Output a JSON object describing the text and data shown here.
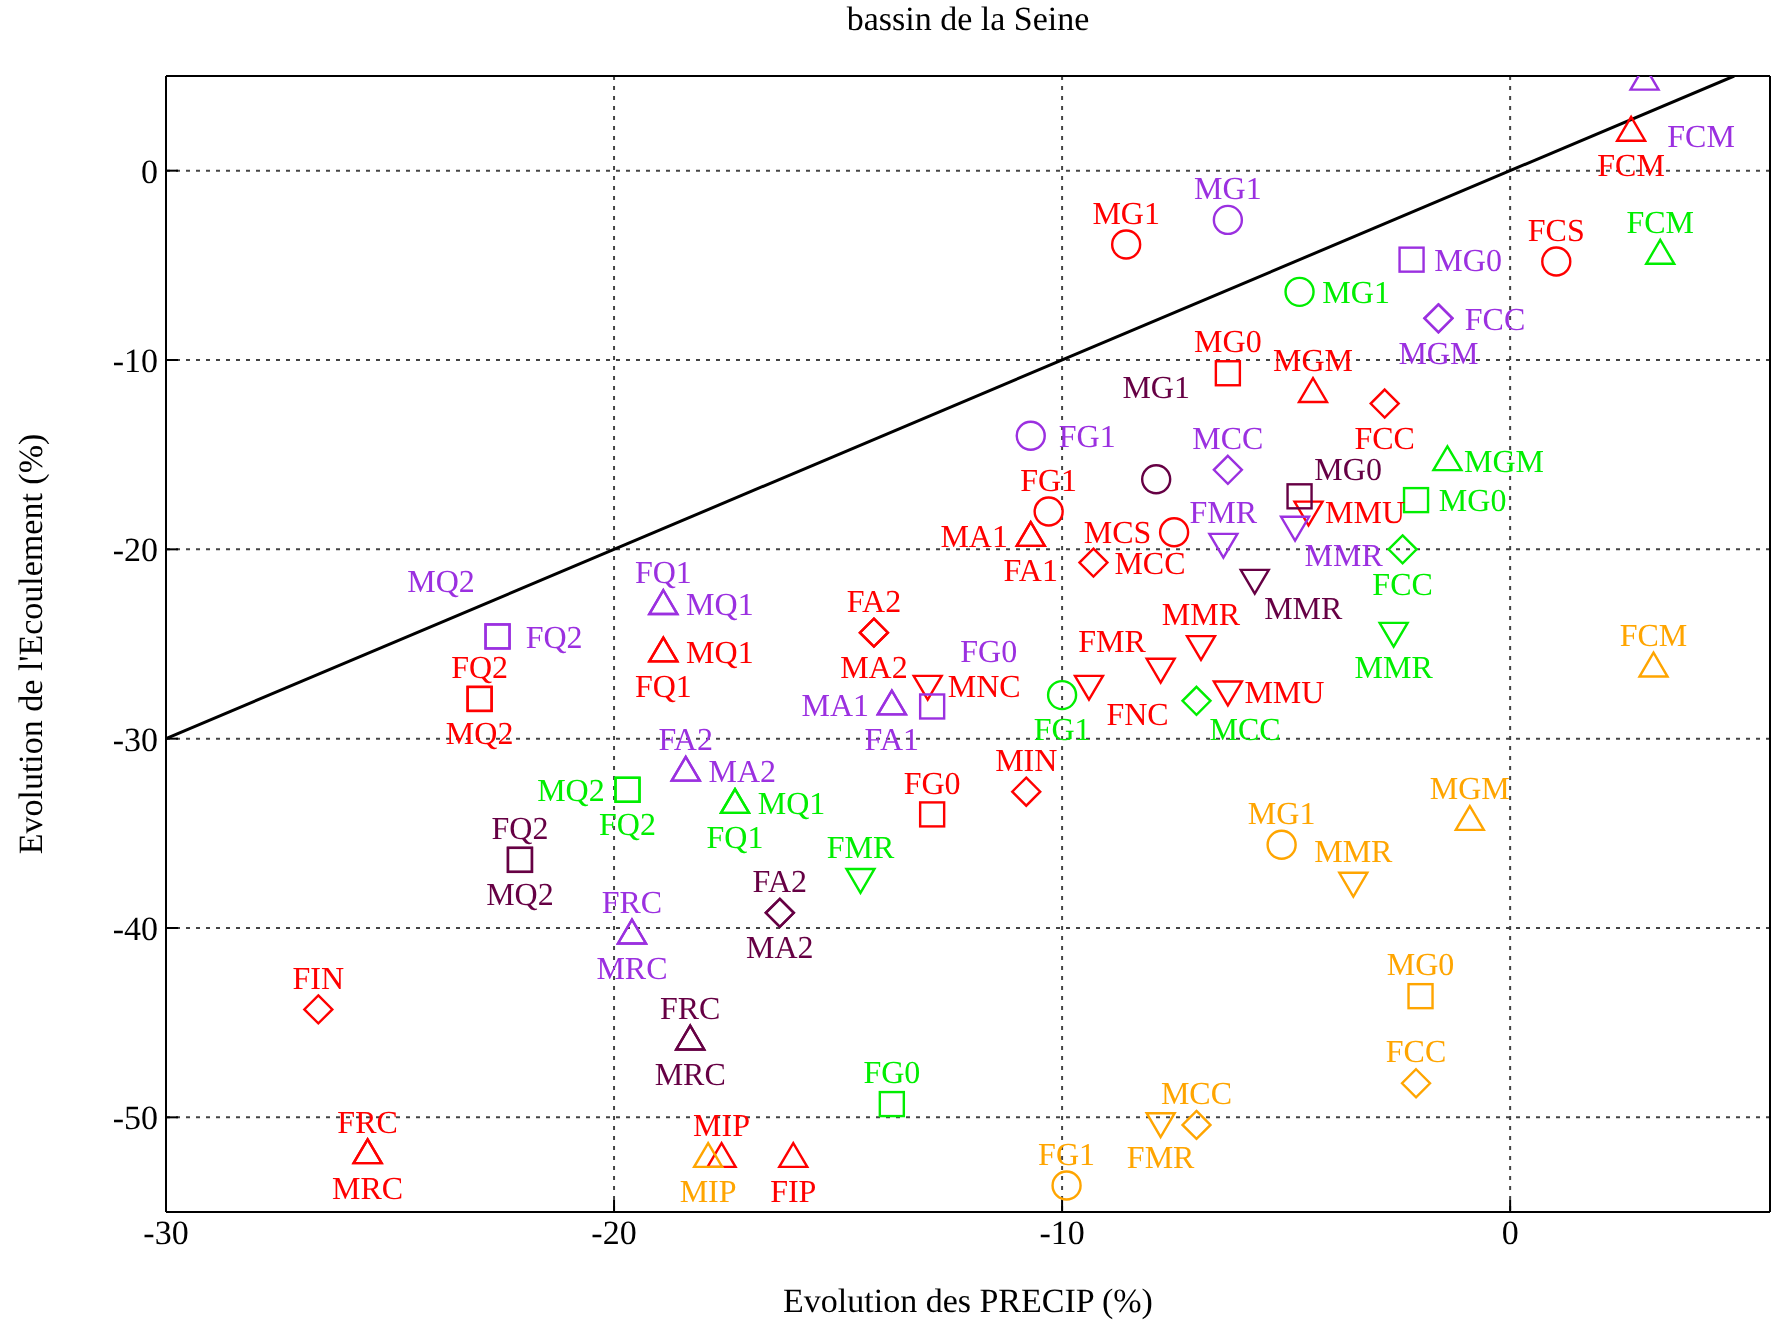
{
  "chart_data": {
    "type": "scatter",
    "title": "bassin de la Seine",
    "xlabel": "Evolution des PRECIP (%)",
    "ylabel": "Evolution de l'Ecoulement (%)",
    "xlim": [
      -30,
      5.8
    ],
    "xticks": [
      -30,
      -20,
      -10,
      0
    ],
    "ylim": [
      -55,
      5
    ],
    "yticks": [
      -50,
      -40,
      -30,
      -20,
      -10,
      0
    ],
    "grid": true,
    "legend": false,
    "series": [
      {
        "type": "line",
        "marker": "none",
        "color": "#000000",
        "x": [
          -30,
          5
        ],
        "values": [
          -30,
          5
        ]
      },
      {
        "marker": "circle",
        "color": "#ff0000",
        "x": [
          -8.57,
          1.03,
          -10.3,
          -7.5
        ],
        "values": [
          -3.9,
          -4.8,
          -18.0,
          -19.1
        ],
        "value_labels": [
          "MG1",
          "FCS",
          "FG1",
          "MCS"
        ]
      },
      {
        "marker": "triangle",
        "color": "#ff0000",
        "x": [
          2.7,
          -4.4,
          -10.7,
          -10.7,
          -18.9,
          -18.9,
          -25.5,
          -25.5,
          -17.6,
          -16.0
        ],
        "values": [
          2.1,
          -11.7,
          -19.3,
          -19.3,
          -25.4,
          -25.4,
          -51.9,
          -51.9,
          -52.1,
          -52.1
        ],
        "value_labels": [
          "FCM",
          "MGM",
          "FA1",
          "MA1",
          "FQ1",
          "MQ1",
          "FRC",
          "MRC",
          "MIP",
          "FIP"
        ]
      },
      {
        "marker": "square",
        "color": "#ff0000",
        "x": [
          -6.3,
          -23.0,
          -23.0,
          -12.9
        ],
        "values": [
          -10.7,
          -27.9,
          -27.9,
          -34.0
        ],
        "value_labels": [
          "MG0",
          "FQ2",
          "MQ2",
          "FG0"
        ]
      },
      {
        "marker": "diamond",
        "color": "#ff0000",
        "x": [
          -2.8,
          -9.3,
          -14.2,
          -14.2,
          -10.8,
          -26.6
        ],
        "values": [
          -12.3,
          -20.7,
          -24.4,
          -24.4,
          -32.8,
          -44.3
        ],
        "value_labels": [
          "FCC",
          "MCC",
          "FA2",
          "MA2",
          "MIN",
          "FIN"
        ]
      },
      {
        "marker": "triangle_down",
        "color": "#ff0000",
        "x": [
          -4.5,
          -6.9,
          -7.8,
          -9.4,
          -13.0,
          -6.3
        ],
        "values": [
          -18.0,
          -25.1,
          -26.3,
          -27.2,
          -27.2,
          -27.5
        ],
        "value_labels": [
          "MMU",
          "MMR",
          "FMR",
          "FNC",
          "MNC",
          "MMU"
        ]
      },
      {
        "marker": "circle",
        "color": "#9b30e0",
        "x": [
          -6.3,
          -10.7
        ],
        "values": [
          -2.6,
          -14.0
        ],
        "value_labels": [
          "MG1",
          "FG1"
        ]
      },
      {
        "marker": "triangle",
        "color": "#9b30e0",
        "x": [
          3.0,
          -18.9,
          -18.9,
          -13.8,
          -13.8,
          -18.4,
          -18.4,
          -19.6,
          -19.6
        ],
        "values": [
          4.8,
          -22.9,
          -22.9,
          -28.2,
          -28.2,
          -31.7,
          -31.7,
          -40.3,
          -40.3
        ],
        "value_labels": [
          "FCM",
          "FQ1",
          "MQ1",
          "FA1",
          "MA1",
          "FA2",
          "MA2",
          "FRC",
          "MRC"
        ]
      },
      {
        "marker": "square",
        "color": "#9b30e0",
        "x": [
          -2.2,
          -22.6,
          -22.6,
          -12.9
        ],
        "values": [
          -4.7,
          -24.6,
          -24.6,
          -28.3
        ],
        "value_labels": [
          "MG0",
          "FQ2",
          "MQ2",
          "FG0"
        ]
      },
      {
        "marker": "diamond",
        "color": "#9b30e0",
        "x": [
          -1.6,
          -1.6,
          -6.3
        ],
        "values": [
          -7.8,
          -7.8,
          -15.8
        ],
        "value_labels": [
          "MGM",
          "FCC",
          "MCC"
        ]
      },
      {
        "marker": "triangle_down",
        "color": "#9b30e0",
        "x": [
          -6.4,
          -4.8
        ],
        "values": [
          -19.7,
          -18.8
        ],
        "value_labels": [
          "FMR",
          "MMR"
        ]
      },
      {
        "marker": "circle",
        "color": "#00ee00",
        "x": [
          -4.7,
          -10.0
        ],
        "values": [
          -6.4,
          -27.7
        ],
        "value_labels": [
          "MG1",
          "FG1"
        ]
      },
      {
        "marker": "triangle",
        "color": "#00ee00",
        "x": [
          3.35,
          -1.4,
          -17.3,
          -17.3
        ],
        "values": [
          -4.4,
          -15.3,
          -33.4,
          -33.4
        ],
        "value_labels": [
          "FCM",
          "MGM",
          "FQ1",
          "MQ1"
        ]
      },
      {
        "marker": "square",
        "color": "#00ee00",
        "x": [
          -2.1,
          -19.7,
          -19.7,
          -13.8
        ],
        "values": [
          -17.4,
          -32.7,
          -32.7,
          -49.3
        ],
        "value_labels": [
          "MG0",
          "FQ2",
          "MQ2",
          "FG0"
        ]
      },
      {
        "marker": "diamond",
        "color": "#00ee00",
        "x": [
          -2.4,
          -7.0
        ],
        "values": [
          -20.0,
          -28.0
        ],
        "value_labels": [
          "FCC",
          "MCC"
        ]
      },
      {
        "marker": "triangle_down",
        "color": "#00ee00",
        "x": [
          -2.6,
          -14.5
        ],
        "values": [
          -24.4,
          -37.4
        ],
        "value_labels": [
          "MMR",
          "FMR"
        ]
      },
      {
        "marker": "circle",
        "color": "#660044",
        "x": [
          -7.9
        ],
        "values": [
          -16.3
        ],
        "value_labels": [
          "MG1"
        ]
      },
      {
        "marker": "square",
        "color": "#660044",
        "x": [
          -4.7,
          -22.1,
          -22.1
        ],
        "values": [
          -17.2,
          -36.4,
          -36.4
        ],
        "value_labels": [
          "MG0",
          "FQ2",
          "MQ2"
        ]
      },
      {
        "marker": "diamond",
        "color": "#660044",
        "x": [
          -16.3,
          -16.3
        ],
        "values": [
          -39.2,
          -39.2
        ],
        "value_labels": [
          "FA2",
          "MA2"
        ]
      },
      {
        "marker": "triangle",
        "color": "#660044",
        "x": [
          -18.3,
          -18.3
        ],
        "values": [
          -45.9,
          -45.9
        ],
        "value_labels": [
          "FRC",
          "MRC"
        ]
      },
      {
        "marker": "triangle_down",
        "color": "#660044",
        "x": [
          -5.7
        ],
        "values": [
          -21.6
        ],
        "value_labels": [
          "MMR"
        ]
      },
      {
        "marker": "circle",
        "color": "#ffa500",
        "x": [
          -5.1,
          -9.9
        ],
        "values": [
          -35.6,
          -53.6
        ],
        "value_labels": [
          "MG1",
          "FG1"
        ]
      },
      {
        "marker": "triangle",
        "color": "#ffa500",
        "x": [
          3.2,
          -0.9,
          -17.9
        ],
        "values": [
          -26.2,
          -34.3,
          -52.1
        ],
        "value_labels": [
          "FCM",
          "MGM",
          "MIP"
        ]
      },
      {
        "marker": "square",
        "color": "#ffa500",
        "x": [
          -2.0
        ],
        "values": [
          -43.6
        ],
        "value_labels": [
          "MG0"
        ]
      },
      {
        "marker": "diamond",
        "color": "#ffa500",
        "x": [
          -2.1,
          -7.0
        ],
        "values": [
          -48.2,
          -50.4
        ],
        "value_labels": [
          "FCC",
          "MCC"
        ]
      },
      {
        "marker": "triangle_down",
        "color": "#ffa500",
        "x": [
          -3.5,
          -7.8
        ],
        "values": [
          -37.6,
          -50.3
        ],
        "value_labels": [
          "MMR",
          "FMR"
        ]
      }
    ]
  }
}
